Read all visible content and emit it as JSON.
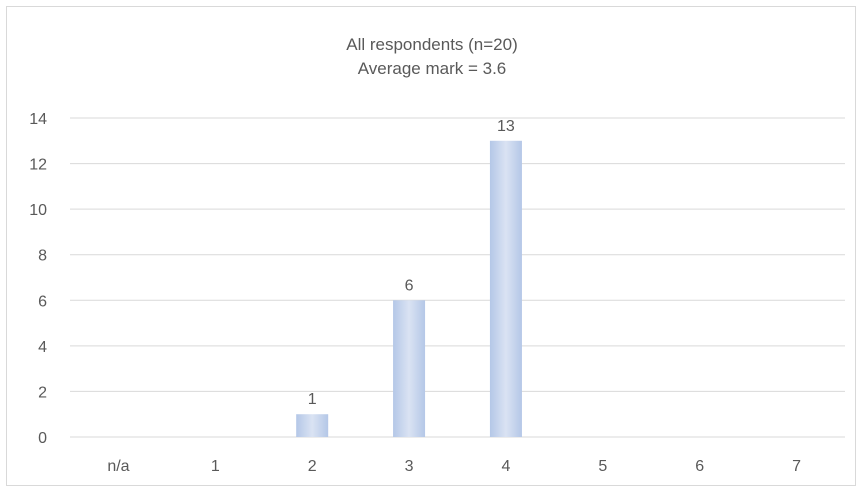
{
  "chart_data": {
    "type": "bar",
    "title": "All respondents (n=20)",
    "subtitle": "Average mark = 3.6",
    "categories": [
      "n/a",
      "1",
      "2",
      "3",
      "4",
      "5",
      "6",
      "7"
    ],
    "values": [
      0,
      0,
      1,
      6,
      13,
      0,
      0,
      0
    ],
    "data_labels": [
      "",
      "",
      "1",
      "6",
      "13",
      "",
      "",
      ""
    ],
    "ylim": [
      0,
      14
    ],
    "yticks": [
      0,
      2,
      4,
      6,
      8,
      10,
      12,
      14
    ],
    "xlabel": "",
    "ylabel": "",
    "grid": true,
    "legend": "none",
    "colors": {
      "bar_edge": "#b4c7e7",
      "bar_center": "#dae3f3",
      "grid": "#d9d9d9",
      "text": "#595959",
      "frame": "#d9d9d9"
    }
  }
}
